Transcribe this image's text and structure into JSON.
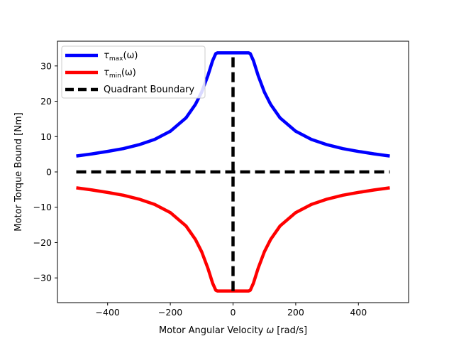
{
  "chart_data": {
    "type": "line",
    "xlabel_main": "Motor Angular Velocity",
    "xlabel_symbol": "ω",
    "xlabel_unit": "[rad/s]",
    "ylabel": "Motor Torque Bound [Nm]",
    "xlim": [
      -560,
      560
    ],
    "ylim": [
      -37,
      37
    ],
    "xticks": [
      -400,
      -200,
      0,
      200,
      400
    ],
    "xtick_labels": [
      "−400",
      "−200",
      "0",
      "200",
      "400"
    ],
    "yticks": [
      -30,
      -20,
      -10,
      0,
      10,
      20,
      30
    ],
    "ytick_labels": [
      "−30",
      "−20",
      "−10",
      "0",
      "10",
      "20",
      "30"
    ],
    "grid": false,
    "legend_position": "top-left",
    "series": [
      {
        "key": "tau_max",
        "name_symbol": "τ",
        "name_sub": "max",
        "name_arg": "(ω)",
        "color": "#0000ff",
        "style": "solid",
        "x": [
          -500,
          -450,
          -400,
          -350,
          -300,
          -250,
          -200,
          -150,
          -120,
          -100,
          -80,
          -65,
          -55,
          -50,
          0,
          50,
          55,
          65,
          80,
          100,
          120,
          150,
          200,
          250,
          300,
          350,
          400,
          450,
          500
        ],
        "y": [
          4.5,
          5.1,
          5.8,
          6.6,
          7.7,
          9.2,
          11.5,
          15.3,
          19.1,
          22.6,
          27.3,
          31.5,
          33.5,
          33.7,
          33.7,
          33.7,
          33.5,
          31.5,
          27.3,
          22.6,
          19.1,
          15.3,
          11.5,
          9.2,
          7.7,
          6.6,
          5.8,
          5.1,
          4.5
        ]
      },
      {
        "key": "tau_min",
        "name_symbol": "τ",
        "name_sub": "min",
        "name_arg": "(ω)",
        "color": "#ff0000",
        "style": "solid",
        "x": [
          -500,
          -450,
          -400,
          -350,
          -300,
          -250,
          -200,
          -150,
          -120,
          -100,
          -80,
          -65,
          -55,
          -50,
          0,
          50,
          55,
          65,
          80,
          100,
          120,
          150,
          200,
          250,
          300,
          350,
          400,
          450,
          500
        ],
        "y": [
          -4.5,
          -5.1,
          -5.8,
          -6.6,
          -7.7,
          -9.2,
          -11.5,
          -15.3,
          -19.1,
          -22.6,
          -27.3,
          -31.5,
          -33.5,
          -33.7,
          -33.7,
          -33.7,
          -33.5,
          -31.5,
          -27.3,
          -22.6,
          -19.1,
          -15.3,
          -11.5,
          -9.2,
          -7.7,
          -6.6,
          -5.8,
          -5.1,
          -4.5
        ]
      },
      {
        "key": "quadrant_h",
        "name": "Quadrant Boundary",
        "color": "#000000",
        "style": "dashed",
        "x": [
          -500,
          500
        ],
        "y": [
          0,
          0
        ]
      },
      {
        "key": "quadrant_v",
        "color": "#000000",
        "style": "dashed",
        "x": [
          0,
          0
        ],
        "y": [
          -33.7,
          33.7
        ]
      }
    ]
  }
}
